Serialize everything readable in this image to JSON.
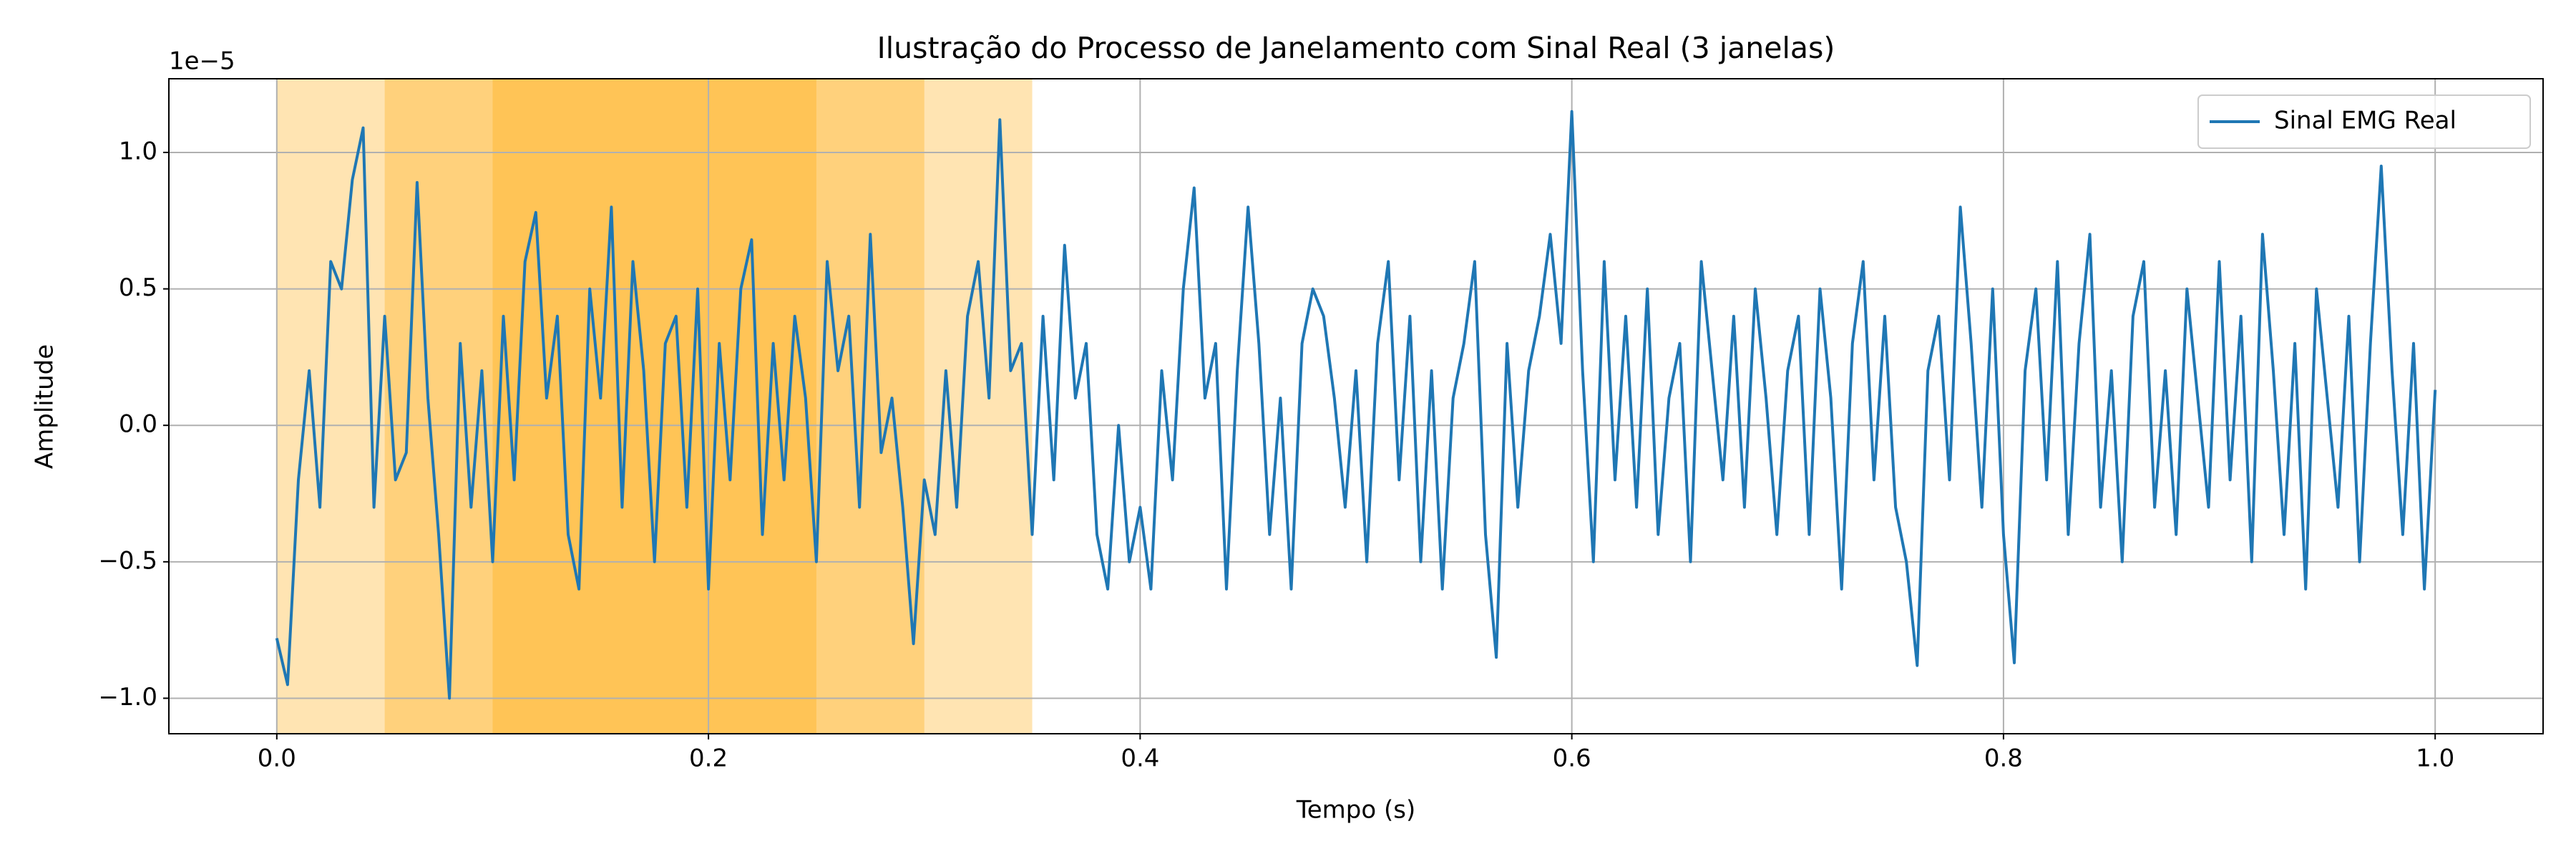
{
  "chart_data": {
    "type": "line",
    "title": "Ilustração do Processo de Janelamento com Sinal Real (3 janelas)",
    "xlabel": "Tempo (s)",
    "ylabel": "Amplitude",
    "y_offset_text": "1e−5",
    "xlim": [
      -0.05,
      1.05
    ],
    "xticks": [
      {
        "value": 0,
        "label": "0.0"
      },
      0.2,
      0.4,
      0.6,
      0.8,
      {
        "value": 1,
        "label": "1.0"
      }
    ],
    "ylim": [
      -1.13,
      1.27
    ],
    "yticks": [
      {
        "value": -1,
        "label": "−1.0"
      },
      {
        "value": -0.5,
        "label": "−0.5"
      },
      {
        "value": 0,
        "label": "0.0"
      },
      0.5,
      {
        "value": 1,
        "label": "1.0"
      }
    ],
    "grid": true,
    "legend": "upper right",
    "span_color": "#ffa500",
    "span_alpha": 0.3,
    "spans": [
      {
        "start": 0,
        "end": 0.25
      },
      {
        "start": 0.05,
        "end": 0.3
      },
      {
        "start": 0.1,
        "end": 0.35
      }
    ],
    "x": [
      0,
      0.005,
      0.01,
      0.015,
      0.02,
      0.025,
      0.03,
      0.035,
      0.04,
      0.045,
      0.05,
      0.055,
      0.06,
      0.065,
      0.07,
      0.075,
      0.08,
      0.085,
      0.09,
      0.095,
      0.1,
      0.105,
      0.11,
      0.115,
      0.12,
      0.125,
      0.13,
      0.135,
      0.14,
      0.145,
      0.15,
      0.155,
      0.16,
      0.165,
      0.17,
      0.175,
      0.18,
      0.185,
      0.19,
      0.195,
      0.2,
      0.205,
      0.21,
      0.215,
      0.22,
      0.225,
      0.23,
      0.235,
      0.24,
      0.245,
      0.25,
      0.255,
      0.26,
      0.265,
      0.27,
      0.275,
      0.28,
      0.285,
      0.29,
      0.295,
      0.3,
      0.305,
      0.31,
      0.315,
      0.32,
      0.325,
      0.33,
      0.335,
      0.34,
      0.345,
      0.35,
      0.355,
      0.36,
      0.365,
      0.37,
      0.375,
      0.38,
      0.385,
      0.39,
      0.395,
      0.4,
      0.405,
      0.41,
      0.415,
      0.42,
      0.425,
      0.43,
      0.435,
      0.44,
      0.445,
      0.45,
      0.455,
      0.46,
      0.465,
      0.47,
      0.475,
      0.48,
      0.485,
      0.49,
      0.495,
      0.5,
      0.505,
      0.51,
      0.515,
      0.52,
      0.525,
      0.53,
      0.535,
      0.54,
      0.545,
      0.55,
      0.555,
      0.56,
      0.565,
      0.57,
      0.575,
      0.58,
      0.585,
      0.59,
      0.595,
      0.6,
      0.605,
      0.61,
      0.615,
      0.62,
      0.625,
      0.63,
      0.635,
      0.64,
      0.645,
      0.65,
      0.655,
      0.66,
      0.665,
      0.67,
      0.675,
      0.68,
      0.685,
      0.69,
      0.695,
      0.7,
      0.705,
      0.71,
      0.715,
      0.72,
      0.725,
      0.73,
      0.735,
      0.74,
      0.745,
      0.75,
      0.755,
      0.76,
      0.765,
      0.77,
      0.775,
      0.78,
      0.785,
      0.79,
      0.795,
      0.8,
      0.805,
      0.81,
      0.815,
      0.82,
      0.825,
      0.83,
      0.835,
      0.84,
      0.845,
      0.85,
      0.855,
      0.86,
      0.865,
      0.87,
      0.875,
      0.88,
      0.885,
      0.89,
      0.895,
      0.9,
      0.905,
      0.91,
      0.915,
      0.92,
      0.925,
      0.93,
      0.935,
      0.94,
      0.945,
      0.95,
      0.955,
      0.96,
      0.965,
      0.97,
      0.975,
      0.98,
      0.985,
      0.99,
      0.995,
      1
    ],
    "series": [
      {
        "name": "Sinal EMG Real",
        "color": "#1f77b4",
        "values": [
          -0.78,
          -0.95,
          -0.2,
          0.2,
          -0.3,
          0.6,
          0.5,
          0.9,
          1.09,
          -0.3,
          0.4,
          -0.2,
          -0.1,
          0.89,
          0.1,
          -0.4,
          -1.0,
          0.3,
          -0.3,
          0.2,
          -0.5,
          0.4,
          -0.2,
          0.6,
          0.78,
          0.1,
          0.4,
          -0.4,
          -0.6,
          0.5,
          0.1,
          0.8,
          -0.3,
          0.6,
          0.2,
          -0.5,
          0.3,
          0.4,
          -0.3,
          0.5,
          -0.6,
          0.3,
          -0.2,
          0.5,
          0.68,
          -0.4,
          0.3,
          -0.2,
          0.4,
          0.1,
          -0.5,
          0.6,
          0.2,
          0.4,
          -0.3,
          0.7,
          -0.1,
          0.1,
          -0.3,
          -0.8,
          -0.2,
          -0.4,
          0.2,
          -0.3,
          0.4,
          0.6,
          0.1,
          1.12,
          0.2,
          0.3,
          -0.4,
          0.4,
          -0.2,
          0.66,
          0.1,
          0.3,
          -0.4,
          -0.6,
          0.0,
          -0.5,
          -0.3,
          -0.6,
          0.2,
          -0.2,
          0.5,
          0.87,
          0.1,
          0.3,
          -0.6,
          0.2,
          0.8,
          0.3,
          -0.4,
          0.1,
          -0.6,
          0.3,
          0.5,
          0.4,
          0.1,
          -0.3,
          0.2,
          -0.5,
          0.3,
          0.6,
          -0.2,
          0.4,
          -0.5,
          0.2,
          -0.6,
          0.1,
          0.3,
          0.6,
          -0.4,
          -0.85,
          0.3,
          -0.3,
          0.2,
          0.4,
          0.7,
          0.3,
          1.15,
          0.2,
          -0.5,
          0.6,
          -0.2,
          0.4,
          -0.3,
          0.5,
          -0.4,
          0.1,
          0.3,
          -0.5,
          0.6,
          0.2,
          -0.2,
          0.4,
          -0.3,
          0.5,
          0.1,
          -0.4,
          0.2,
          0.4,
          -0.4,
          0.5,
          0.1,
          -0.6,
          0.3,
          0.6,
          -0.2,
          0.4,
          -0.3,
          -0.5,
          -0.88,
          0.2,
          0.4,
          -0.2,
          0.8,
          0.3,
          -0.3,
          0.5,
          -0.4,
          -0.87,
          0.2,
          0.5,
          -0.2,
          0.6,
          -0.4,
          0.3,
          0.7,
          -0.3,
          0.2,
          -0.5,
          0.4,
          0.6,
          -0.3,
          0.2,
          -0.4,
          0.5,
          0.1,
          -0.3,
          0.6,
          -0.2,
          0.4,
          -0.5,
          0.7,
          0.2,
          -0.4,
          0.3,
          -0.6,
          0.5,
          0.1,
          -0.3,
          0.4,
          -0.5,
          0.3,
          0.95,
          0.2,
          -0.4,
          0.3,
          -0.6,
          0.13
        ]
      }
    ]
  }
}
